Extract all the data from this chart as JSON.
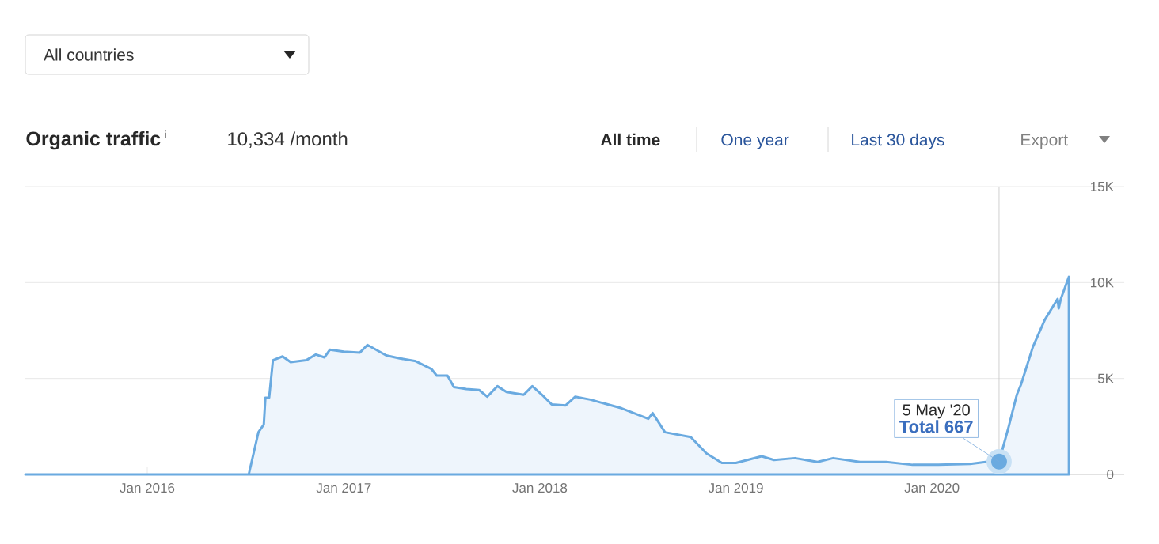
{
  "chart_data": {
    "type": "area",
    "title": "Organic traffic",
    "subtitle": "10,334 /month",
    "annotations": [
      "All countries",
      "i",
      "All time",
      "One year",
      "Last 30 days",
      "Export",
      {
        "text": "5 May '20",
        "x": "2020-05-05",
        "y": 667
      },
      {
        "text": "Total 667",
        "x": "2020-05-05",
        "y": 667
      }
    ],
    "x": [
      "2015-05-19",
      "2016-07-08",
      "2016-07-26",
      "2016-08-05",
      "2016-08-08",
      "2016-08-15",
      "2016-08-22",
      "2016-09-09",
      "2016-09-24",
      "2016-10-23",
      "2016-11-10",
      "2016-11-26",
      "2016-12-06",
      "2017-01-01",
      "2017-01-31",
      "2017-02-14",
      "2017-03-21",
      "2017-04-15",
      "2017-05-15",
      "2017-06-13",
      "2017-06-23",
      "2017-07-13",
      "2017-07-25",
      "2017-08-17",
      "2017-09-10",
      "2017-09-25",
      "2017-10-14",
      "2017-10-31",
      "2017-12-02",
      "2017-12-18",
      "2018-01-05",
      "2018-01-23",
      "2018-02-18",
      "2018-03-08",
      "2018-04-05",
      "2018-06-02",
      "2018-07-22",
      "2018-07-30",
      "2018-08-22",
      "2018-10-09",
      "2018-11-07",
      "2018-12-06",
      "2019-01-01",
      "2019-02-18",
      "2019-03-13",
      "2019-04-21",
      "2019-06-02",
      "2019-07-01",
      "2019-08-20",
      "2019-10-08",
      "2019-11-26",
      "2020-01-13",
      "2020-03-12",
      "2020-04-10",
      "2020-05-05",
      "2020-05-23",
      "2020-06-07",
      "2020-06-15",
      "2020-07-07",
      "2020-07-29",
      "2020-08-22",
      "2020-08-24",
      "2020-08-28",
      "2020-09-12"
    ],
    "series": [
      {
        "color": "#6aaae0",
        "values": [
          0,
          0,
          2200,
          2600,
          4000,
          4000,
          5950,
          6150,
          5850,
          5950,
          6250,
          6100,
          6500,
          6400,
          6350,
          6750,
          6200,
          6050,
          5900,
          5500,
          5150,
          5150,
          4550,
          4450,
          4400,
          4050,
          4600,
          4300,
          4150,
          4600,
          4150,
          3650,
          3600,
          4050,
          3900,
          3450,
          2900,
          3200,
          2200,
          1950,
          1100,
          600,
          600,
          950,
          750,
          850,
          650,
          850,
          650,
          650,
          500,
          500,
          550,
          650,
          667,
          2500,
          4150,
          4700,
          6650,
          8050,
          9150,
          8650,
          9150,
          10300
        ]
      }
    ],
    "xlim": [
      "2015-05-19",
      "2020-12-24"
    ],
    "xticks": [
      {
        "value": "2016-01-01",
        "label": "Jan 2016"
      },
      {
        "value": "2017-01-01",
        "label": "Jan 2017"
      },
      {
        "value": "2018-01-01",
        "label": "Jan 2018"
      },
      {
        "value": "2019-01-01",
        "label": "Jan 2019"
      },
      {
        "value": "2020-01-01",
        "label": "Jan 2020"
      }
    ],
    "ylim": [
      0,
      15000
    ],
    "yticks": [
      0,
      {
        "value": 5000,
        "label": "5K"
      },
      {
        "value": 10000,
        "label": "10K"
      },
      {
        "value": 15000,
        "label": "15K"
      }
    ],
    "grid": "y",
    "ref_lines": [
      {
        "axis": "x",
        "value": "2020-05-05",
        "color": "#c4c4c4"
      }
    ]
  }
}
